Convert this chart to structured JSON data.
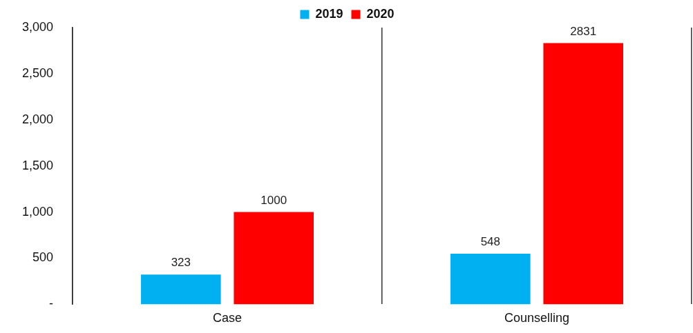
{
  "chart_data": {
    "type": "bar",
    "categories": [
      "Case",
      "Counselling"
    ],
    "series": [
      {
        "name": "2019",
        "color": "#00b0f0",
        "values": [
          323,
          548
        ]
      },
      {
        "name": "2020",
        "color": "#ff0000",
        "values": [
          1000,
          2831
        ]
      }
    ],
    "ylim": [
      0,
      3000
    ],
    "yticks": [
      {
        "value": 0,
        "label": "-"
      },
      500,
      {
        "value": 1000,
        "label": "1,000"
      },
      {
        "value": 1500,
        "label": "1,500"
      },
      {
        "value": 2000,
        "label": "2,000"
      },
      {
        "value": 2500,
        "label": "2,500"
      },
      {
        "value": 3000,
        "label": "3,000"
      }
    ],
    "grid": "x",
    "legend": "top",
    "data_labels": true
  }
}
